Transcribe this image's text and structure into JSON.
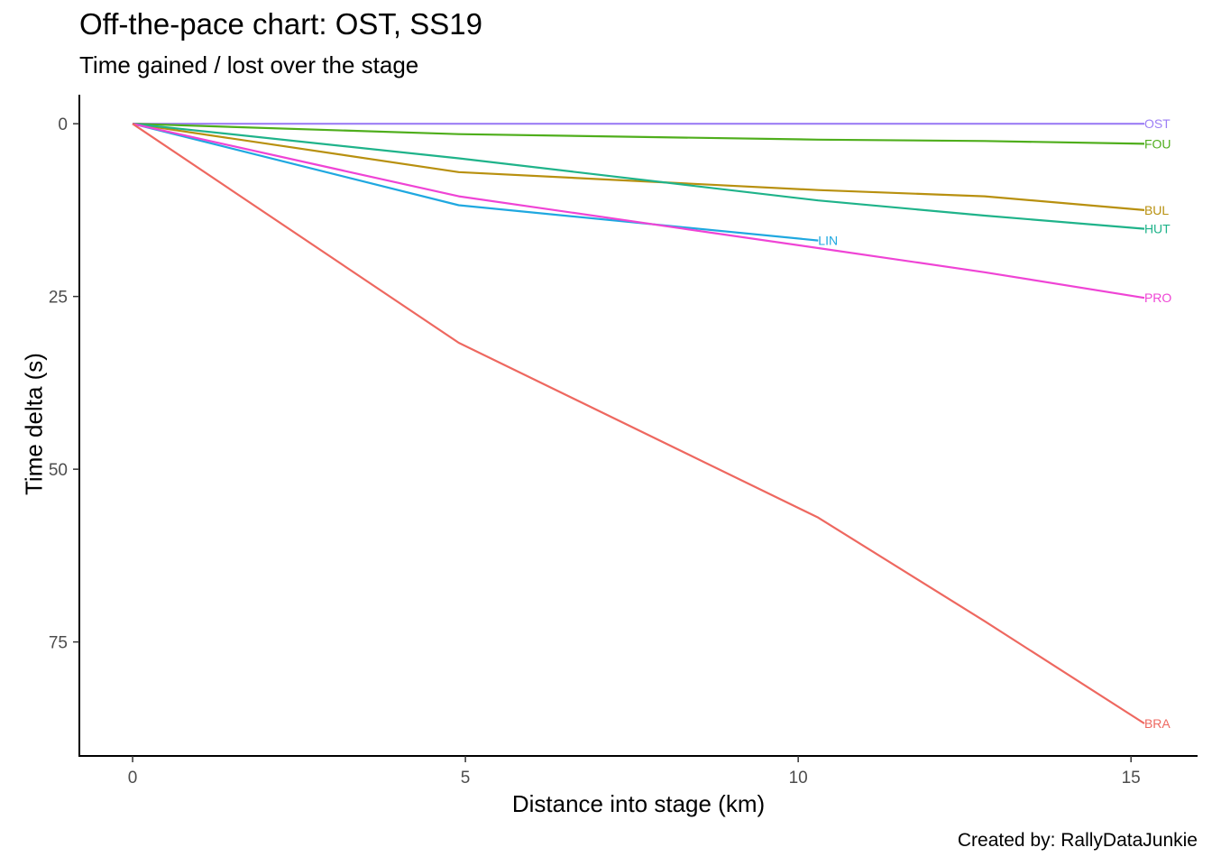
{
  "chart_data": {
    "type": "line",
    "title": "Off-the-pace chart: OST, SS19",
    "subtitle": "Time gained / lost over the stage",
    "xlabel": "Distance into stage (km)",
    "ylabel": "Time delta (s)",
    "caption": "Created by: RallyDataJunkie",
    "xlim": [
      -0.8,
      16.0
    ],
    "ylim": [
      -4.2,
      91.5
    ],
    "y_reversed": true,
    "grid": false,
    "legend": "none",
    "x_ticks": [
      0,
      5,
      10,
      15
    ],
    "y_ticks": [
      0,
      25,
      50,
      75
    ],
    "series": [
      {
        "name": "OST",
        "color": "#9C7EF5",
        "x": [
          0,
          4.9,
          10.3,
          12.8,
          15.2
        ],
        "y": [
          0,
          0,
          0,
          0,
          0
        ]
      },
      {
        "name": "FOU",
        "color": "#4FAE1C",
        "x": [
          0,
          4.9,
          10.3,
          12.8,
          15.2
        ],
        "y": [
          0,
          1.5,
          2.3,
          2.5,
          2.9
        ]
      },
      {
        "name": "BUL",
        "color": "#B8900F",
        "x": [
          0,
          4.9,
          10.3,
          12.8,
          15.2
        ],
        "y": [
          0,
          7.0,
          9.6,
          10.5,
          12.5
        ]
      },
      {
        "name": "HUT",
        "color": "#1FB38A",
        "x": [
          0,
          4.9,
          10.3,
          12.8,
          15.2
        ],
        "y": [
          0,
          5.0,
          11.1,
          13.3,
          15.2
        ]
      },
      {
        "name": "LIN",
        "color": "#1FA8E0",
        "x": [
          0,
          4.9,
          10.3
        ],
        "y": [
          0,
          11.8,
          16.9
        ]
      },
      {
        "name": "PRO",
        "color": "#EF44D5",
        "x": [
          0,
          4.9,
          10.3,
          12.8,
          15.2
        ],
        "y": [
          0,
          10.5,
          18.0,
          21.5,
          25.2
        ]
      },
      {
        "name": "BRA",
        "color": "#EE6860",
        "x": [
          0,
          4.9,
          10.3,
          12.8,
          15.2
        ],
        "y": [
          0,
          31.7,
          57.0,
          72.0,
          86.8
        ]
      }
    ]
  }
}
